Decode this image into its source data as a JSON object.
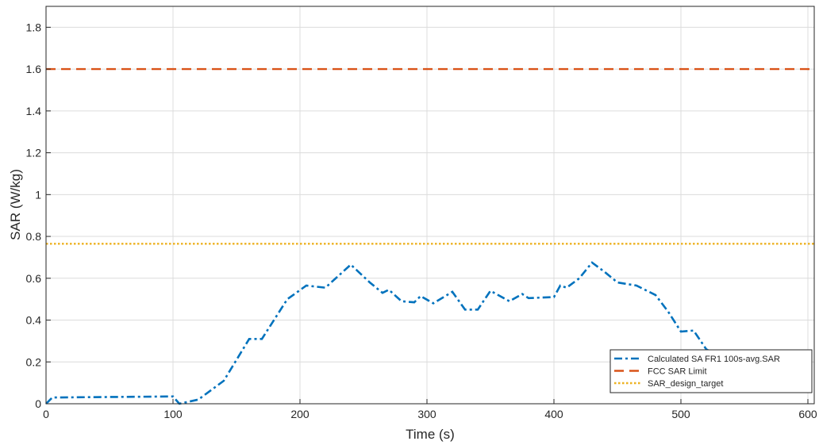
{
  "chart_data": {
    "type": "line",
    "xlabel": "Time (s)",
    "ylabel": "SAR (W/kg)",
    "xlim": [
      0,
      605
    ],
    "ylim": [
      0,
      1.9
    ],
    "grid": true,
    "legend_position": "bottom-right",
    "x_ticks": [
      "0",
      "100",
      "200",
      "300",
      "400",
      "500",
      "600"
    ],
    "y_ticks": [
      "0",
      "0.2",
      "0.4",
      "0.6",
      "0.8",
      "1",
      "1.2",
      "1.4",
      "1.6",
      "1.8"
    ],
    "series": [
      {
        "name": "Calculated SA FR1 100s-avg.SAR",
        "color": "#0072BD",
        "style": "dash-dot",
        "x": [
          0,
          5,
          100,
          105,
          120,
          140,
          160,
          170,
          190,
          205,
          220,
          240,
          255,
          265,
          270,
          280,
          290,
          295,
          305,
          320,
          330,
          340,
          350,
          365,
          375,
          380,
          400,
          405,
          410,
          420,
          430,
          440,
          450,
          465,
          480,
          490,
          500,
          510,
          520,
          540,
          560,
          580,
          600,
          605
        ],
        "y": [
          0.0,
          0.03,
          0.035,
          0.0,
          0.02,
          0.11,
          0.31,
          0.31,
          0.5,
          0.565,
          0.555,
          0.665,
          0.58,
          0.53,
          0.545,
          0.49,
          0.485,
          0.515,
          0.48,
          0.535,
          0.45,
          0.45,
          0.54,
          0.49,
          0.525,
          0.505,
          0.51,
          0.565,
          0.555,
          0.6,
          0.675,
          0.63,
          0.58,
          0.565,
          0.52,
          0.44,
          0.345,
          0.35,
          0.26,
          0.2,
          0.17,
          0.14,
          0.13,
          0.13
        ]
      },
      {
        "name": "FCC SAR Limit",
        "color": "#D95319",
        "style": "dashed",
        "x": [
          0,
          605
        ],
        "y": [
          1.6,
          1.6
        ]
      },
      {
        "name": "SAR_design_target",
        "color": "#EDB120",
        "style": "dotted",
        "x": [
          0,
          605
        ],
        "y": [
          0.765,
          0.765
        ]
      }
    ]
  }
}
